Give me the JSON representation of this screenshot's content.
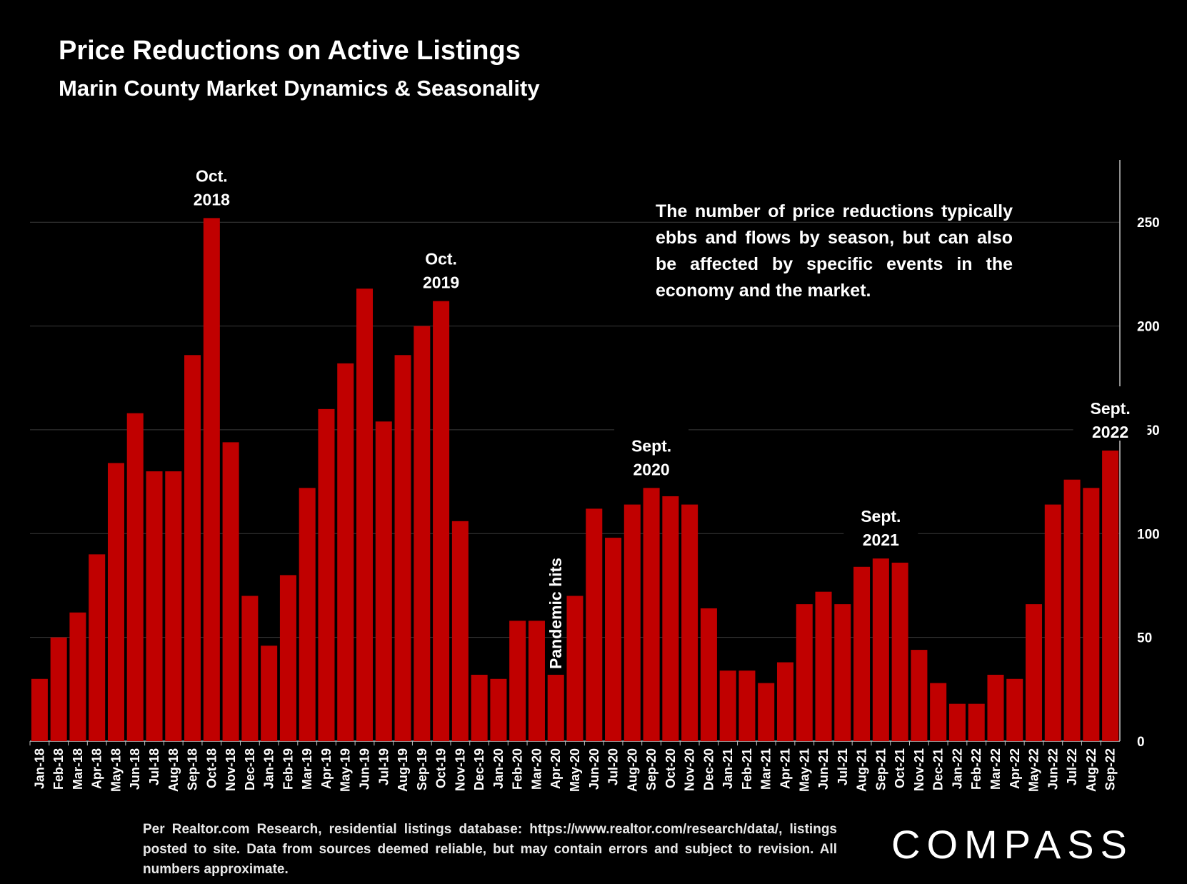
{
  "header": {
    "title": "Price Reductions on Active Listings",
    "subtitle": "Marin County Market Dynamics & Seasonality"
  },
  "note": "The number of price reductions typically ebbs and flows by season, but can also be affected by specific events in the economy and the market.",
  "footnote": "Per Realtor.com Research, residential listings database: https://www.realtor.com/research/data/, listings posted to site. Data from sources deemed reliable, but may contain errors and subject to revision. All numbers approximate.",
  "logo": "COMPASS",
  "colors": {
    "bar": "#c00000",
    "background": "#000000",
    "grid": "#3a3a3a",
    "text": "#ffffff"
  },
  "chart_data": {
    "type": "bar",
    "title": "Price Reductions on Active Listings",
    "subtitle": "Marin County Market Dynamics & Seasonality",
    "xlabel": "",
    "ylabel": "",
    "ylim": [
      0,
      280
    ],
    "yticks": [
      0,
      50,
      100,
      150,
      200,
      250
    ],
    "y_axis_side": "right",
    "grid": true,
    "categories": [
      "Jan-18",
      "Feb-18",
      "Mar-18",
      "Apr-18",
      "May-18",
      "Jun-18",
      "Jul-18",
      "Aug-18",
      "Sep-18",
      "Oct-18",
      "Nov-18",
      "Dec-18",
      "Jan-19",
      "Feb-19",
      "Mar-19",
      "Apr-19",
      "May-19",
      "Jun-19",
      "Jul-19",
      "Aug-19",
      "Sep-19",
      "Oct-19",
      "Nov-19",
      "Dec-19",
      "Jan-20",
      "Feb-20",
      "Mar-20",
      "Apr-20",
      "May-20",
      "Jun-20",
      "Jul-20",
      "Aug-20",
      "Sep-20",
      "Oct-20",
      "Nov-20",
      "Dec-20",
      "Jan-21",
      "Feb-21",
      "Mar-21",
      "Apr-21",
      "May-21",
      "Jun-21",
      "Jul-21",
      "Aug-21",
      "Sep-21",
      "Oct-21",
      "Nov-21",
      "Dec-21",
      "Jan-22",
      "Feb-22",
      "Mar-22",
      "Apr-22",
      "May-22",
      "Jun-22",
      "Jul-22",
      "Aug-22",
      "Sep-22"
    ],
    "values": [
      30,
      50,
      62,
      90,
      134,
      158,
      130,
      130,
      186,
      252,
      144,
      70,
      46,
      80,
      122,
      160,
      182,
      218,
      154,
      186,
      200,
      212,
      106,
      32,
      30,
      58,
      58,
      32,
      70,
      112,
      98,
      114,
      122,
      118,
      114,
      64,
      34,
      34,
      28,
      38,
      66,
      72,
      66,
      84,
      88,
      86,
      44,
      28,
      18,
      18,
      32,
      30,
      66,
      114,
      126,
      122,
      140
    ],
    "annotations": [
      {
        "index": 9,
        "lines": [
          "Oct.",
          "2018"
        ]
      },
      {
        "index": 21,
        "lines": [
          "Oct.",
          "2019"
        ]
      },
      {
        "index": 32,
        "lines": [
          "Sept.",
          "2020"
        ]
      },
      {
        "index": 44,
        "lines": [
          "Sept.",
          "2021"
        ]
      },
      {
        "index": 56,
        "lines": [
          "Sept.",
          "2022"
        ]
      }
    ],
    "vertical_annotation": {
      "index": 27,
      "text": "Pandemic hits"
    }
  }
}
